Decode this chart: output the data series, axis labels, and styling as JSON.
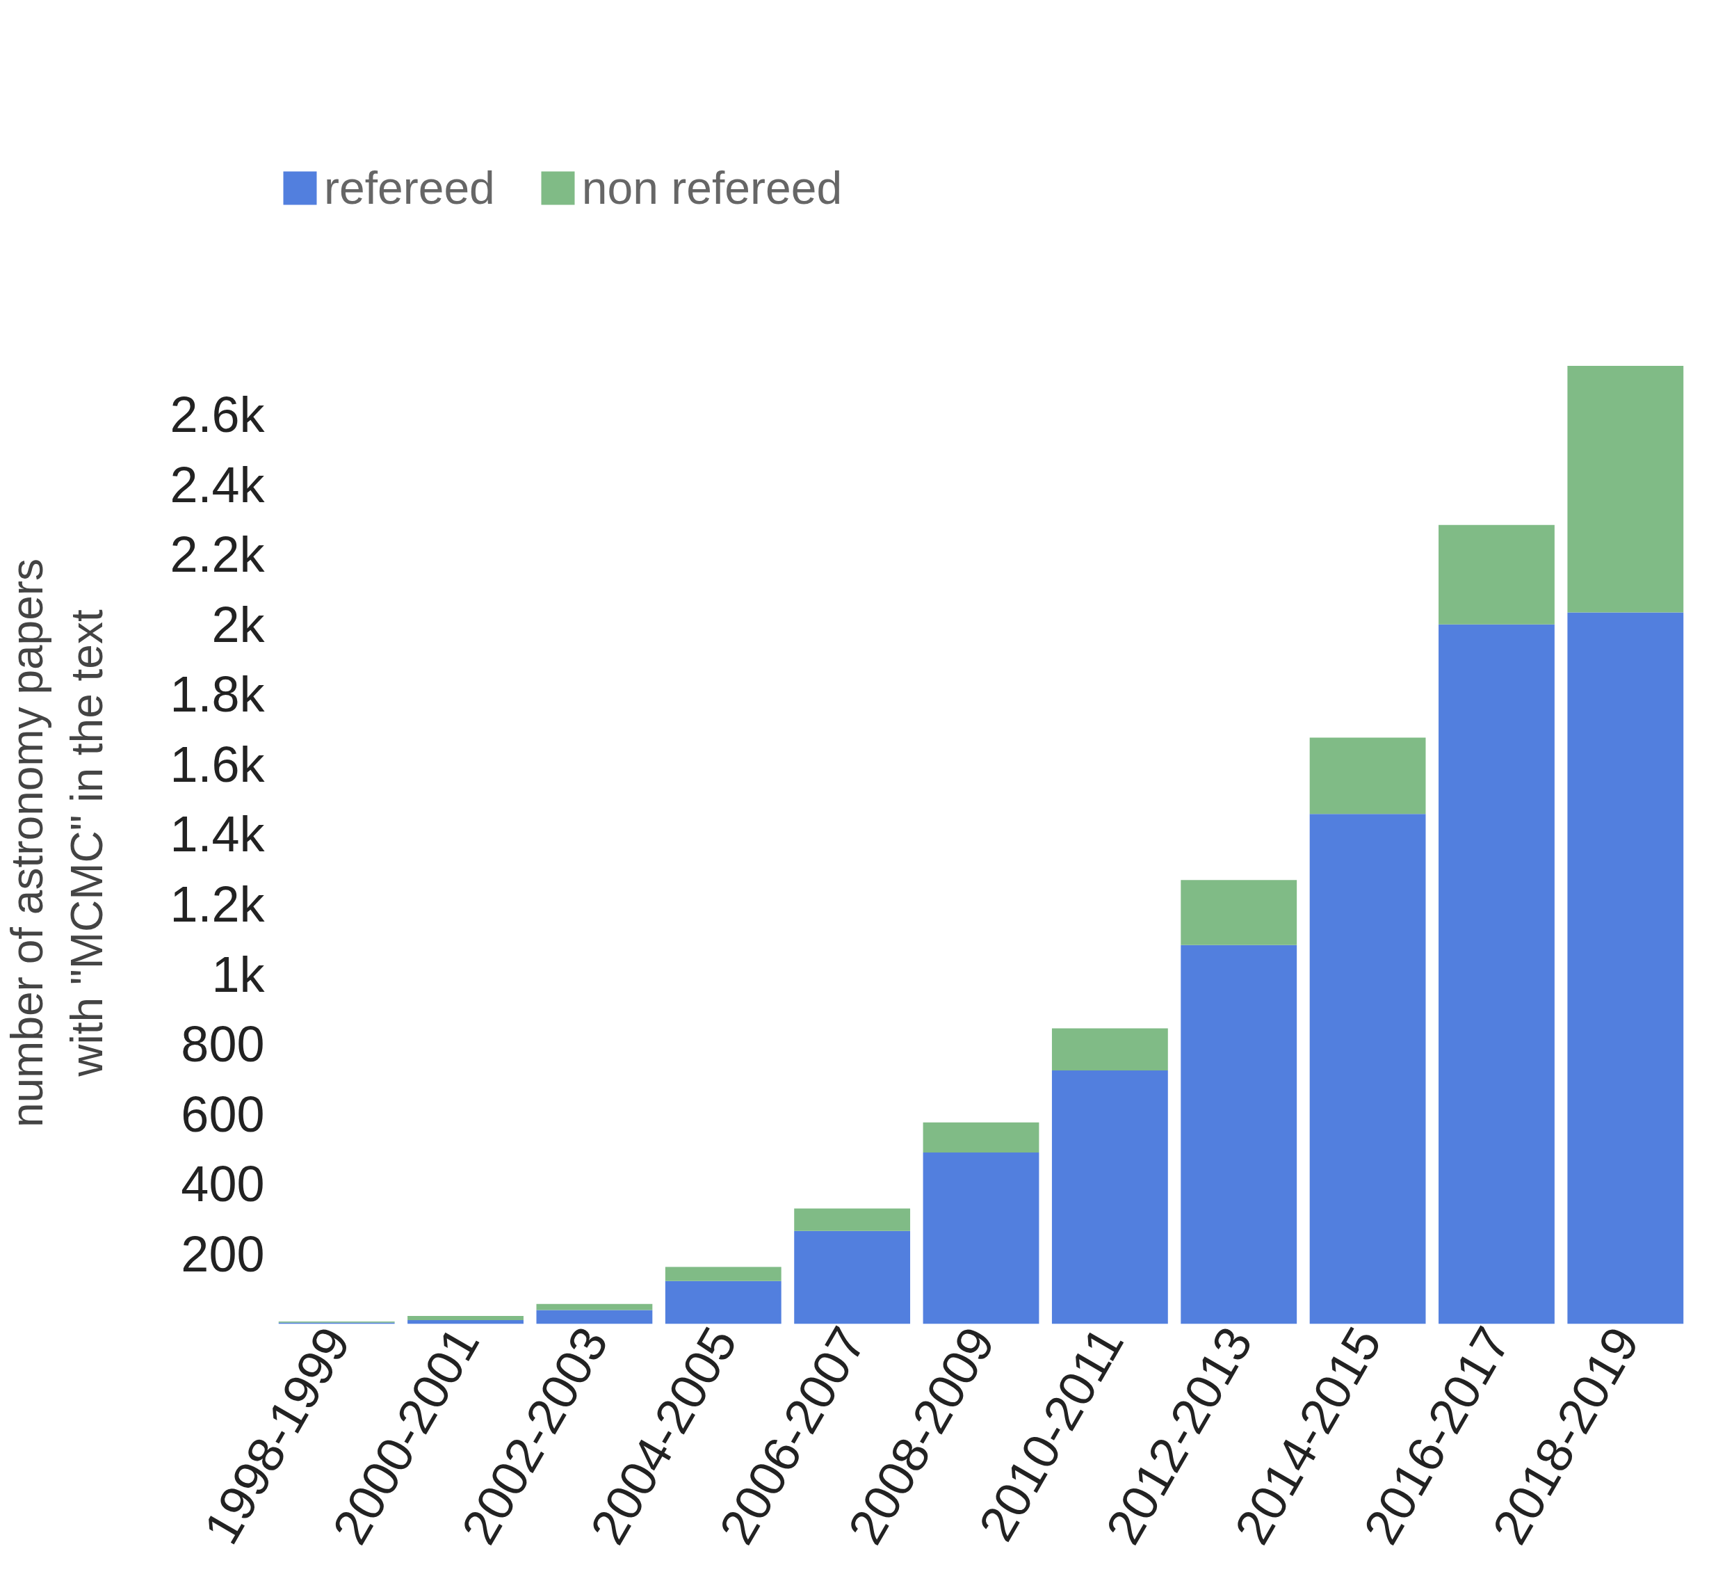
{
  "chart_data": {
    "type": "bar",
    "stacked": true,
    "ylabel": "number of astronomy papers\nwith \"MCMC\" in the text",
    "categories": [
      "1998-1999",
      "2000-2001",
      "2002-2003",
      "2004-2005",
      "2006-2007",
      "2008-2009",
      "2010-2011",
      "2012-2013",
      "2014-2015",
      "2016-2017",
      "2018-2019"
    ],
    "series": [
      {
        "name": "refereed",
        "color": "#527fde",
        "values": [
          4,
          11,
          40,
          123,
          266,
          490,
          725,
          1083,
          1458,
          2000,
          2034
        ]
      },
      {
        "name": "non refereed",
        "color": "#80bb86",
        "values": [
          3,
          12,
          17,
          40,
          64,
          86,
          120,
          186,
          218,
          284,
          705
        ]
      }
    ],
    "ylim": [
      0,
      2750
    ],
    "yticks": [
      200,
      400,
      600,
      800,
      {
        "value": 1000,
        "label": "1k"
      },
      {
        "value": 1200,
        "label": "1.2k"
      },
      {
        "value": 1400,
        "label": "1.4k"
      },
      {
        "value": 1600,
        "label": "1.6k"
      },
      {
        "value": 1800,
        "label": "1.8k"
      },
      {
        "value": 2000,
        "label": "2k"
      },
      {
        "value": 2200,
        "label": "2.2k"
      },
      {
        "value": 2400,
        "label": "2.4k"
      },
      {
        "value": 2600,
        "label": "2.6k"
      }
    ],
    "grid": false,
    "legend": "top left"
  }
}
